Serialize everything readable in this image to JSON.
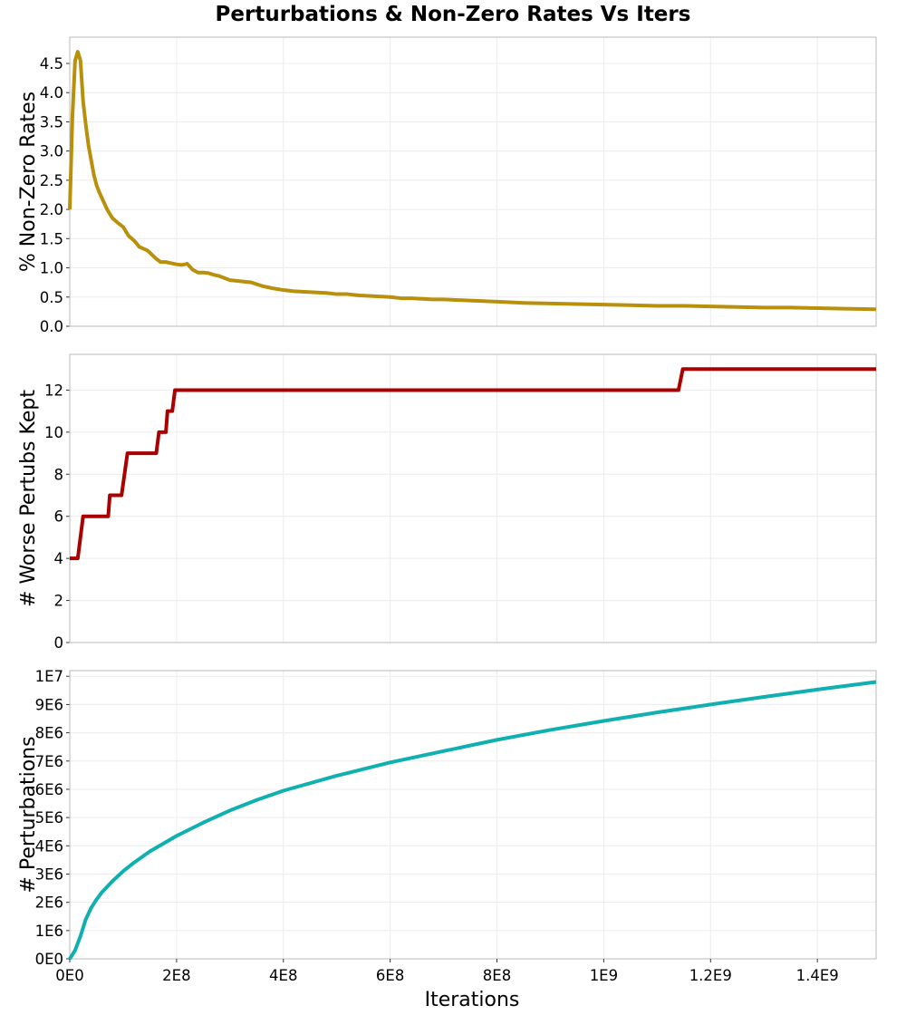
{
  "title": "Perturbations & Non-Zero Rates Vs Iters",
  "xlabel": "Iterations",
  "x_ticks": [
    {
      "value": 0,
      "label": "0E0"
    },
    {
      "value": 200000000,
      "label": "2E8"
    },
    {
      "value": 400000000,
      "label": "4E8"
    },
    {
      "value": 600000000,
      "label": "6E8"
    },
    {
      "value": 800000000,
      "label": "8E8"
    },
    {
      "value": 1000000000,
      "label": "1E9"
    },
    {
      "value": 1200000000,
      "label": "1.2E9"
    },
    {
      "value": 1400000000,
      "label": "1.4E9"
    }
  ],
  "xlim": [
    0,
    1510000000
  ],
  "colors": {
    "rates": "#b8900c",
    "worse": "#aa0000",
    "perturb": "#10b0b0"
  },
  "chart_data": [
    {
      "type": "line",
      "ylabel": "% Non-Zero Rates",
      "ylim": [
        0,
        4.95
      ],
      "y_ticks": [
        {
          "value": 0,
          "label": "0.0"
        },
        {
          "value": 0.5,
          "label": "0.5"
        },
        {
          "value": 1.0,
          "label": "1.0"
        },
        {
          "value": 1.5,
          "label": "1.5"
        },
        {
          "value": 2.0,
          "label": "2.0"
        },
        {
          "value": 2.5,
          "label": "2.5"
        },
        {
          "value": 3.0,
          "label": "3.0"
        },
        {
          "value": 3.5,
          "label": "3.5"
        },
        {
          "value": 4.0,
          "label": "4.0"
        },
        {
          "value": 4.5,
          "label": "4.5"
        }
      ],
      "grid": true,
      "series": [
        {
          "color": "#b8900c",
          "x": [
            0,
            5000000,
            10000000,
            15000000,
            20000000,
            25000000,
            30000000,
            35000000,
            40000000,
            45000000,
            50000000,
            55000000,
            60000000,
            65000000,
            70000000,
            80000000,
            90000000,
            100000000,
            110000000,
            120000000,
            125000000,
            130000000,
            140000000,
            145000000,
            150000000,
            160000000,
            170000000,
            175000000,
            180000000,
            190000000,
            200000000,
            210000000,
            220000000,
            230000000,
            240000000,
            250000000,
            260000000,
            270000000,
            280000000,
            300000000,
            320000000,
            340000000,
            360000000,
            380000000,
            400000000,
            420000000,
            440000000,
            460000000,
            480000000,
            500000000,
            520000000,
            540000000,
            560000000,
            580000000,
            600000000,
            620000000,
            640000000,
            660000000,
            680000000,
            700000000,
            750000000,
            800000000,
            850000000,
            900000000,
            950000000,
            1000000000,
            1050000000,
            1100000000,
            1150000000,
            1200000000,
            1250000000,
            1300000000,
            1350000000,
            1400000000,
            1450000000,
            1510000000
          ],
          "values": [
            2.0,
            3.6,
            4.55,
            4.7,
            4.55,
            3.85,
            3.45,
            3.1,
            2.85,
            2.6,
            2.42,
            2.3,
            2.2,
            2.1,
            2.0,
            1.85,
            1.77,
            1.7,
            1.55,
            1.47,
            1.42,
            1.36,
            1.32,
            1.3,
            1.26,
            1.17,
            1.1,
            1.1,
            1.1,
            1.08,
            1.06,
            1.05,
            1.07,
            0.97,
            0.92,
            0.92,
            0.91,
            0.88,
            0.86,
            0.79,
            0.77,
            0.75,
            0.69,
            0.65,
            0.62,
            0.6,
            0.59,
            0.58,
            0.57,
            0.55,
            0.55,
            0.53,
            0.52,
            0.51,
            0.5,
            0.48,
            0.48,
            0.47,
            0.46,
            0.46,
            0.44,
            0.42,
            0.4,
            0.39,
            0.38,
            0.37,
            0.36,
            0.35,
            0.35,
            0.34,
            0.33,
            0.32,
            0.32,
            0.31,
            0.3,
            0.29
          ]
        }
      ]
    },
    {
      "type": "line",
      "ylabel": "# Worse Pertubs Kept",
      "ylim": [
        0,
        13.7
      ],
      "y_ticks": [
        {
          "value": 0,
          "label": "0"
        },
        {
          "value": 2,
          "label": "2"
        },
        {
          "value": 4,
          "label": "4"
        },
        {
          "value": 6,
          "label": "6"
        },
        {
          "value": 8,
          "label": "8"
        },
        {
          "value": 10,
          "label": "10"
        },
        {
          "value": 12,
          "label": "12"
        }
      ],
      "grid": true,
      "series": [
        {
          "color": "#aa0000",
          "x": [
            0,
            15000000,
            25000000,
            72000000,
            75000000,
            97000000,
            108000000,
            162000000,
            167000000,
            180000000,
            183000000,
            192000000,
            197000000,
            1140000000,
            1148000000,
            1510000000
          ],
          "values": [
            4,
            4,
            6,
            6,
            7,
            7,
            9,
            9,
            10,
            10,
            11,
            11,
            12,
            12,
            13,
            13
          ]
        }
      ]
    },
    {
      "type": "line",
      "ylabel": "# Perturbations",
      "xlabel": "Iterations",
      "ylim": [
        0,
        10200000
      ],
      "y_ticks": [
        {
          "value": 0,
          "label": "0E0"
        },
        {
          "value": 1000000,
          "label": "1E6"
        },
        {
          "value": 2000000,
          "label": "2E6"
        },
        {
          "value": 3000000,
          "label": "3E6"
        },
        {
          "value": 4000000,
          "label": "4E6"
        },
        {
          "value": 5000000,
          "label": "5E6"
        },
        {
          "value": 6000000,
          "label": "6E6"
        },
        {
          "value": 7000000,
          "label": "7E6"
        },
        {
          "value": 8000000,
          "label": "8E6"
        },
        {
          "value": 9000000,
          "label": "9E6"
        },
        {
          "value": 10000000,
          "label": "1E7"
        }
      ],
      "grid": true,
      "series": [
        {
          "color": "#10b0b0",
          "x": [
            0,
            10000000,
            20000000,
            30000000,
            40000000,
            50000000,
            60000000,
            70000000,
            80000000,
            100000000,
            120000000,
            150000000,
            200000000,
            250000000,
            300000000,
            350000000,
            400000000,
            500000000,
            600000000,
            700000000,
            800000000,
            900000000,
            1000000000,
            1100000000,
            1200000000,
            1300000000,
            1400000000,
            1510000000
          ],
          "values": [
            0,
            300000,
            800000,
            1400000,
            1800000,
            2100000,
            2350000,
            2550000,
            2750000,
            3100000,
            3400000,
            3800000,
            4350000,
            4820000,
            5250000,
            5620000,
            5950000,
            6480000,
            6950000,
            7350000,
            7750000,
            8100000,
            8420000,
            8720000,
            9000000,
            9270000,
            9530000,
            9800000
          ]
        }
      ]
    }
  ]
}
